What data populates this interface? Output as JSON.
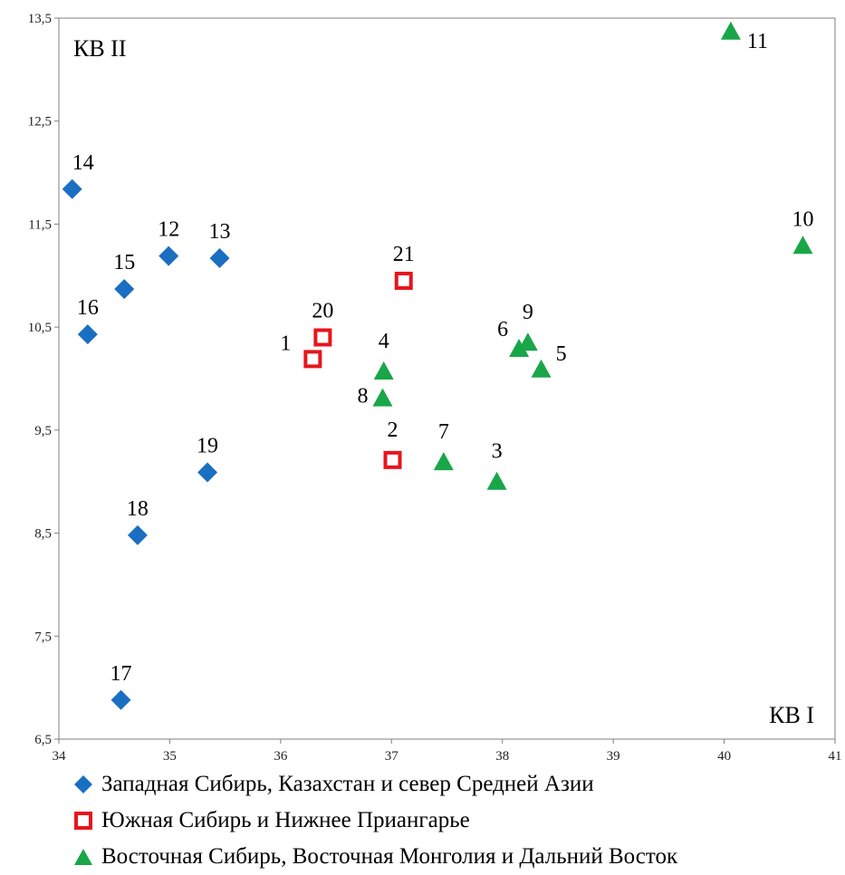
{
  "chart_data": {
    "type": "scatter",
    "title": "",
    "xlim": [
      34,
      41
    ],
    "ylim": [
      6.5,
      13.5
    ],
    "x_ticks": [
      "34",
      "35",
      "36",
      "37",
      "38",
      "39",
      "40",
      "41"
    ],
    "y_ticks": [
      "6,5",
      "7,5",
      "8,5",
      "9,5",
      "10,5",
      "11,5",
      "12,5",
      "13,5"
    ],
    "x_ticks_values": [
      34,
      35,
      36,
      37,
      38,
      39,
      40,
      41
    ],
    "y_ticks_values": [
      6.5,
      7.5,
      8.5,
      9.5,
      10.5,
      11.5,
      12.5,
      13.5
    ],
    "xlabel": "КВ I",
    "ylabel": "КВ II",
    "grid": false,
    "legend_position": "bottom",
    "series": [
      {
        "name": "Западная Сибирь, Казахстан и север Средней Азии",
        "marker": "diamond",
        "color": "#1a6fc2",
        "points": [
          {
            "label": "12",
            "x": 34.99,
            "y": 11.19
          },
          {
            "label": "13",
            "x": 35.45,
            "y": 11.17
          },
          {
            "label": "14",
            "x": 34.12,
            "y": 11.84
          },
          {
            "label": "15",
            "x": 34.59,
            "y": 10.87
          },
          {
            "label": "16",
            "x": 34.26,
            "y": 10.43
          },
          {
            "label": "17",
            "x": 34.56,
            "y": 6.88
          },
          {
            "label": "18",
            "x": 34.71,
            "y": 8.48
          },
          {
            "label": "19",
            "x": 35.34,
            "y": 9.09
          }
        ]
      },
      {
        "name": "Южная Сибирь и Нижнее Приангарье",
        "marker": "square-open",
        "color": "#e8141c",
        "points": [
          {
            "label": "1",
            "x": 36.29,
            "y": 10.19
          },
          {
            "label": "2",
            "x": 37.01,
            "y": 9.21
          },
          {
            "label": "20",
            "x": 36.38,
            "y": 10.4
          },
          {
            "label": "21",
            "x": 37.11,
            "y": 10.95
          }
        ]
      },
      {
        "name": "Восточная Сибирь, Восточная Монголия и Дальний Восток",
        "marker": "triangle",
        "color": "#19a649",
        "points": [
          {
            "label": "3",
            "x": 37.95,
            "y": 9.0
          },
          {
            "label": "4",
            "x": 36.93,
            "y": 10.07
          },
          {
            "label": "5",
            "x": 38.35,
            "y": 10.09
          },
          {
            "label": "6",
            "x": 38.15,
            "y": 10.29
          },
          {
            "label": "7",
            "x": 37.47,
            "y": 9.19
          },
          {
            "label": "8",
            "x": 36.92,
            "y": 9.81
          },
          {
            "label": "9",
            "x": 38.23,
            "y": 10.35
          },
          {
            "label": "10",
            "x": 40.71,
            "y": 11.29
          },
          {
            "label": "11",
            "x": 40.06,
            "y": 13.37
          }
        ]
      }
    ]
  }
}
